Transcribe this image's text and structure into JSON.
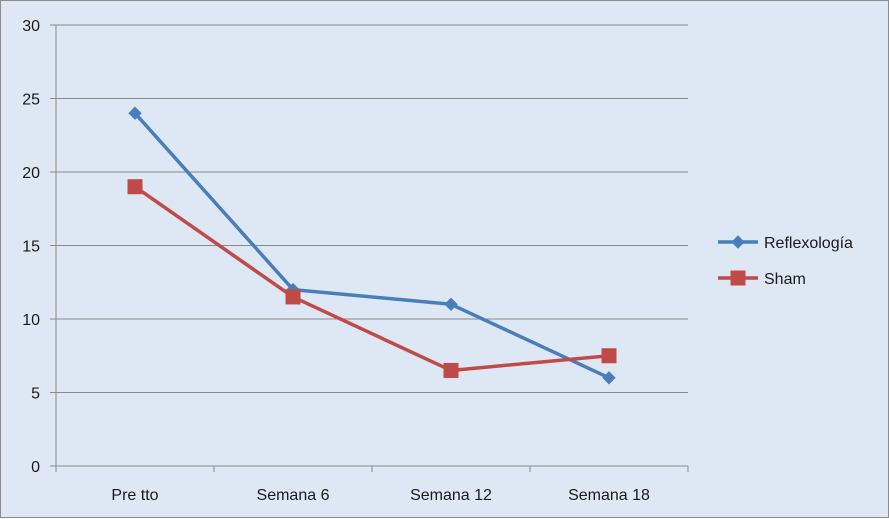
{
  "chart_data": {
    "type": "line",
    "categories": [
      "Pre tto",
      "Semana 6",
      "Semana 12",
      "Semana 18"
    ],
    "series": [
      {
        "name": "Reflexología",
        "values": [
          24,
          12,
          11,
          6
        ],
        "color": "#4a7ebb",
        "marker": "diamond"
      },
      {
        "name": "Sham",
        "values": [
          19,
          11.5,
          6.5,
          7.5
        ],
        "color": "#be4b48",
        "marker": "square"
      }
    ],
    "ylim": [
      0,
      30
    ],
    "yticks": [
      0,
      5,
      10,
      15,
      20,
      25,
      30
    ],
    "grid": true,
    "legend": "right",
    "title": "",
    "xlabel": "",
    "ylabel": ""
  }
}
